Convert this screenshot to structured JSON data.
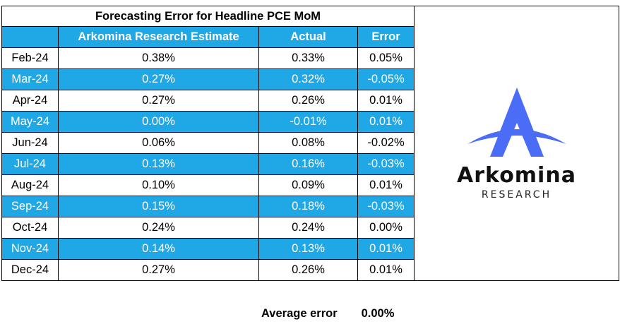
{
  "title": "Forecasting Error for Headline PCE MoM",
  "columns": {
    "month": "",
    "estimate": "Arkomina Research Estimate",
    "actual": "Actual",
    "error": "Error"
  },
  "rows": [
    {
      "month": "Feb-24",
      "estimate": "0.38%",
      "actual": "0.33%",
      "error": "0.05%"
    },
    {
      "month": "Mar-24",
      "estimate": "0.27%",
      "actual": "0.32%",
      "error": "-0.05%"
    },
    {
      "month": "Apr-24",
      "estimate": "0.27%",
      "actual": "0.26%",
      "error": "0.01%"
    },
    {
      "month": "May-24",
      "estimate": "0.00%",
      "actual": "-0.01%",
      "error": "0.01%"
    },
    {
      "month": "Jun-24",
      "estimate": "0.06%",
      "actual": "0.08%",
      "error": "-0.02%"
    },
    {
      "month": "Jul-24",
      "estimate": "0.13%",
      "actual": "0.16%",
      "error": "-0.03%"
    },
    {
      "month": "Aug-24",
      "estimate": "0.10%",
      "actual": "0.09%",
      "error": "0.01%"
    },
    {
      "month": "Sep-24",
      "estimate": "0.15%",
      "actual": "0.18%",
      "error": "-0.03%"
    },
    {
      "month": "Oct-24",
      "estimate": "0.24%",
      "actual": "0.24%",
      "error": "0.00%"
    },
    {
      "month": "Nov-24",
      "estimate": "0.14%",
      "actual": "0.13%",
      "error": "0.01%"
    },
    {
      "month": "Dec-24",
      "estimate": "0.27%",
      "actual": "0.26%",
      "error": "0.01%"
    }
  ],
  "logo": {
    "name": "Arkomina",
    "subtitle": "RESEARCH",
    "accent_color": "#4a6cf7"
  },
  "summary": {
    "label": "Average error",
    "value": "0.00%"
  },
  "colors": {
    "band": "#1fa7e6",
    "band_text": "#ffffff"
  }
}
